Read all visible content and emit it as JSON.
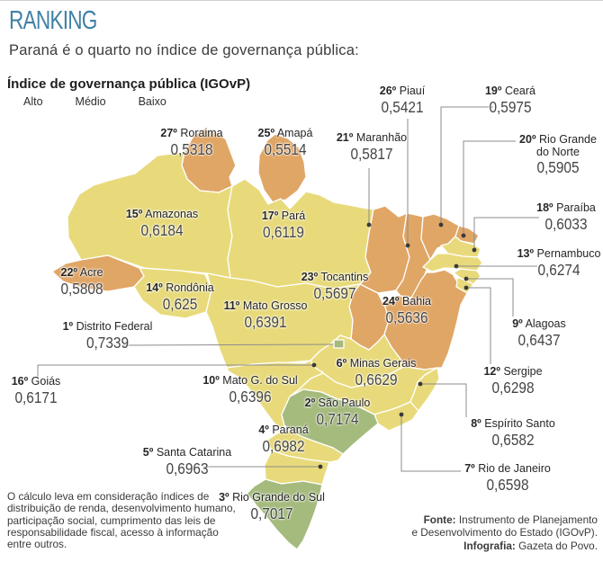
{
  "header": {
    "kicker": "RANKING",
    "subtitle": "Paraná é o quarto no índice de governança pública:"
  },
  "legend": {
    "title": "Índice de governança pública (IGOvP)",
    "items": [
      {
        "label": "Alto",
        "level": "alto",
        "color": "#a5bb7e"
      },
      {
        "label": "Médio",
        "level": "medio",
        "color": "#e8da7b"
      },
      {
        "label": "Baixo",
        "level": "baixo",
        "color": "#e0a666"
      }
    ]
  },
  "colors": {
    "title": "#4181a7",
    "leader_line": "#8c8c8c",
    "label_text": "#262626",
    "value_text": "#454545"
  },
  "map": {
    "states": [
      {
        "id": "df",
        "rank": "1º",
        "name": "Distrito Federal",
        "value": "0,7339",
        "level": "alto"
      },
      {
        "id": "saopaulo",
        "rank": "2º",
        "name": "São Paulo",
        "value": "0,7174",
        "level": "alto"
      },
      {
        "id": "rgsul",
        "rank": "3º",
        "name": "Rio Grande do Sul",
        "value": "0,7017",
        "level": "alto"
      },
      {
        "id": "parana",
        "rank": "4º",
        "name": "Paraná",
        "value": "0,6982",
        "level": "medio"
      },
      {
        "id": "scatarina",
        "rank": "5º",
        "name": "Santa Catarina",
        "value": "0,6963",
        "level": "medio"
      },
      {
        "id": "minas",
        "rank": "6º",
        "name": "Minas Gerais",
        "value": "0,6629",
        "level": "medio"
      },
      {
        "id": "rio",
        "rank": "7º",
        "name": "Rio de Janeiro",
        "value": "0,6598",
        "level": "medio"
      },
      {
        "id": "espsanto",
        "rank": "8º",
        "name": "Espírito Santo",
        "value": "0,6582",
        "level": "medio"
      },
      {
        "id": "alagoas",
        "rank": "9º",
        "name": "Alagoas",
        "value": "0,6437",
        "level": "medio"
      },
      {
        "id": "msul",
        "rank": "10º",
        "name": "Mato G. do Sul",
        "value": "0,6396",
        "level": "medio"
      },
      {
        "id": "matogrosso",
        "rank": "11º",
        "name": "Mato Grosso",
        "value": "0,6391",
        "level": "medio"
      },
      {
        "id": "sergipe",
        "rank": "12º",
        "name": "Sergipe",
        "value": "0,6298",
        "level": "medio"
      },
      {
        "id": "pernambuco",
        "rank": "13º",
        "name": "Pernambuco",
        "value": "0,6274",
        "level": "medio"
      },
      {
        "id": "rondonia",
        "rank": "14º",
        "name": "Rondônia",
        "value": "0,625",
        "level": "medio"
      },
      {
        "id": "amazonas",
        "rank": "15º",
        "name": "Amazonas",
        "value": "0,6184",
        "level": "medio"
      },
      {
        "id": "goias",
        "rank": "16º",
        "name": "Goiás",
        "value": "0,6171",
        "level": "medio"
      },
      {
        "id": "para",
        "rank": "17º",
        "name": "Pará",
        "value": "0,6119",
        "level": "medio"
      },
      {
        "id": "paraiba",
        "rank": "18º",
        "name": "Paraíba",
        "value": "0,6033",
        "level": "medio"
      },
      {
        "id": "ceara",
        "rank": "19º",
        "name": "Ceará",
        "value": "0,5975",
        "level": "baixo"
      },
      {
        "id": "rgnorte",
        "rank": "20º",
        "name": "Rio Grande do Norte",
        "value": "0,5905",
        "level": "baixo"
      },
      {
        "id": "maranhao",
        "rank": "21º",
        "name": "Maranhão",
        "value": "0,5817",
        "level": "baixo"
      },
      {
        "id": "acre",
        "rank": "22º",
        "name": "Acre",
        "value": "0,5808",
        "level": "baixo"
      },
      {
        "id": "tocantins",
        "rank": "23º",
        "name": "Tocantins",
        "value": "0,5697",
        "level": "baixo"
      },
      {
        "id": "bahia",
        "rank": "24º",
        "name": "Bahia",
        "value": "0,5636",
        "level": "baixo"
      },
      {
        "id": "amapa",
        "rank": "25º",
        "name": "Amapá",
        "value": "0,5514",
        "level": "baixo"
      },
      {
        "id": "piaui",
        "rank": "26º",
        "name": "Piauí",
        "value": "0,5421",
        "level": "baixo"
      },
      {
        "id": "roraima",
        "rank": "27º",
        "name": "Roraima",
        "value": "0,5318",
        "level": "baixo"
      }
    ]
  },
  "footnote": "O cálculo leva em consideração índices de distribuição de renda, desenvolvimento humano, participação social, cumprimento das leis de responsabilidade fiscal, acesso à informação entre outros.",
  "source": {
    "line1_bold": "Fonte:",
    "line1": " Instrumento de Planejamento",
    "line2": "e Desenvolvimento do Estado (IGOvP).",
    "line3_bold": "Infografia:",
    "line3": " Gazeta do Povo."
  }
}
